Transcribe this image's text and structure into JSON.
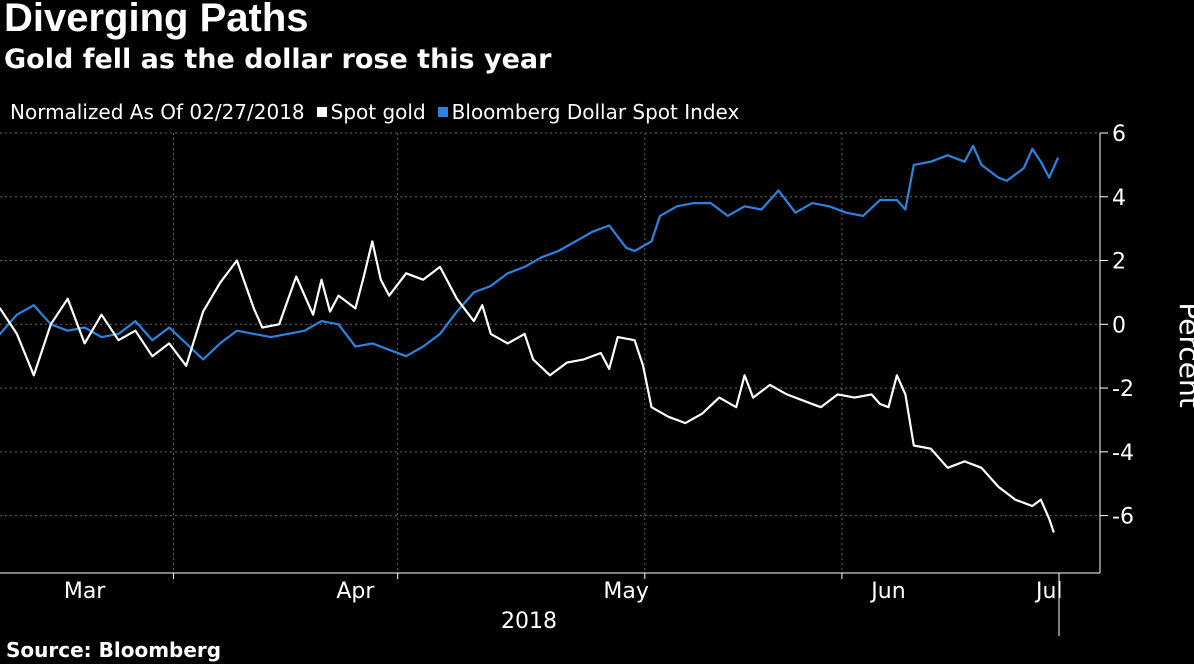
{
  "header": {
    "title": "Diverging Paths",
    "subtitle": "Gold fell as the dollar rose this year"
  },
  "legend": {
    "note": "Normalized As Of 02/27/2018",
    "items": [
      {
        "label": "Spot gold",
        "color": "#ffffff"
      },
      {
        "label": "Bloomberg Dollar Spot Index",
        "color": "#2d84e0"
      }
    ]
  },
  "footer": {
    "source": "Source: Bloomberg"
  },
  "chart_data": {
    "type": "line",
    "title": "Diverging Paths",
    "subtitle": "Gold fell as the dollar rose this year",
    "xlabel": "2018",
    "ylabel": "Percent",
    "ylim": [
      -7.8,
      6.0
    ],
    "yticks": [
      6,
      4,
      2,
      0,
      -2,
      -4,
      -6
    ],
    "ytick_labels": [
      "6",
      "4",
      "2",
      "0",
      "-2",
      "-4",
      "-6"
    ],
    "xlim": [
      0,
      130
    ],
    "xticks": [
      {
        "x": 10,
        "label": "Mar"
      },
      {
        "x": 42,
        "label": "Apr"
      },
      {
        "x": 74,
        "label": "May"
      },
      {
        "x": 105,
        "label": "Jun"
      },
      {
        "x": 124,
        "label": "Jul"
      }
    ],
    "year_label": "2018",
    "grid": true,
    "legend_position": "top-left",
    "series": [
      {
        "name": "Spot gold",
        "color": "#ffffff",
        "points": [
          [
            0,
            0.5
          ],
          [
            2,
            -0.3
          ],
          [
            4,
            -1.6
          ],
          [
            6,
            0.0
          ],
          [
            8,
            0.8
          ],
          [
            10,
            -0.6
          ],
          [
            12,
            0.3
          ],
          [
            14,
            -0.5
          ],
          [
            16,
            -0.2
          ],
          [
            18,
            -1.0
          ],
          [
            20,
            -0.6
          ],
          [
            22,
            -1.3
          ],
          [
            24,
            0.4
          ],
          [
            26,
            1.3
          ],
          [
            28,
            2.0
          ],
          [
            30,
            0.5
          ],
          [
            31,
            -0.1
          ],
          [
            33,
            0.0
          ],
          [
            35,
            1.5
          ],
          [
            37,
            0.3
          ],
          [
            38,
            1.4
          ],
          [
            39,
            0.4
          ],
          [
            40,
            0.9
          ],
          [
            42,
            0.5
          ],
          [
            43,
            1.5
          ],
          [
            44,
            2.6
          ],
          [
            45,
            1.4
          ],
          [
            46,
            0.9
          ],
          [
            48,
            1.6
          ],
          [
            50,
            1.4
          ],
          [
            52,
            1.8
          ],
          [
            54,
            0.8
          ],
          [
            56,
            0.1
          ],
          [
            57,
            0.6
          ],
          [
            58,
            -0.3
          ],
          [
            60,
            -0.6
          ],
          [
            62,
            -0.3
          ],
          [
            63,
            -1.1
          ],
          [
            65,
            -1.6
          ],
          [
            67,
            -1.2
          ],
          [
            69,
            -1.1
          ],
          [
            71,
            -0.9
          ],
          [
            72,
            -1.4
          ],
          [
            73,
            -0.4
          ],
          [
            75,
            -0.5
          ],
          [
            76,
            -1.3
          ],
          [
            77,
            -2.6
          ],
          [
            79,
            -2.9
          ],
          [
            81,
            -3.1
          ],
          [
            83,
            -2.8
          ],
          [
            85,
            -2.3
          ],
          [
            87,
            -2.6
          ],
          [
            88,
            -1.6
          ],
          [
            89,
            -2.3
          ],
          [
            91,
            -1.9
          ],
          [
            93,
            -2.2
          ],
          [
            95,
            -2.4
          ],
          [
            97,
            -2.6
          ],
          [
            99,
            -2.2
          ],
          [
            101,
            -2.3
          ],
          [
            103,
            -2.2
          ],
          [
            104,
            -2.5
          ],
          [
            105,
            -2.6
          ],
          [
            106,
            -1.6
          ],
          [
            107,
            -2.2
          ],
          [
            108,
            -3.8
          ],
          [
            110,
            -3.9
          ],
          [
            112,
            -4.5
          ],
          [
            114,
            -4.3
          ],
          [
            116,
            -4.5
          ],
          [
            118,
            -5.1
          ],
          [
            120,
            -5.5
          ],
          [
            122,
            -5.7
          ],
          [
            123,
            -5.5
          ],
          [
            124,
            -6.1
          ],
          [
            124.5,
            -6.5
          ]
        ]
      },
      {
        "name": "Bloomberg Dollar Spot Index",
        "color": "#2d84e0",
        "points": [
          [
            0,
            -0.3
          ],
          [
            2,
            0.3
          ],
          [
            4,
            0.6
          ],
          [
            6,
            0.0
          ],
          [
            8,
            -0.2
          ],
          [
            10,
            -0.1
          ],
          [
            12,
            -0.4
          ],
          [
            14,
            -0.3
          ],
          [
            16,
            0.1
          ],
          [
            18,
            -0.5
          ],
          [
            20,
            -0.1
          ],
          [
            22,
            -0.6
          ],
          [
            24,
            -1.1
          ],
          [
            26,
            -0.6
          ],
          [
            28,
            -0.2
          ],
          [
            30,
            -0.3
          ],
          [
            32,
            -0.4
          ],
          [
            34,
            -0.3
          ],
          [
            36,
            -0.2
          ],
          [
            38,
            0.1
          ],
          [
            40,
            0.0
          ],
          [
            42,
            -0.7
          ],
          [
            44,
            -0.6
          ],
          [
            46,
            -0.8
          ],
          [
            48,
            -1.0
          ],
          [
            50,
            -0.7
          ],
          [
            52,
            -0.3
          ],
          [
            54,
            0.4
          ],
          [
            56,
            1.0
          ],
          [
            58,
            1.2
          ],
          [
            60,
            1.6
          ],
          [
            62,
            1.8
          ],
          [
            64,
            2.1
          ],
          [
            66,
            2.3
          ],
          [
            68,
            2.6
          ],
          [
            70,
            2.9
          ],
          [
            72,
            3.1
          ],
          [
            74,
            2.4
          ],
          [
            75,
            2.3
          ],
          [
            77,
            2.6
          ],
          [
            78,
            3.4
          ],
          [
            80,
            3.7
          ],
          [
            82,
            3.8
          ],
          [
            84,
            3.8
          ],
          [
            86,
            3.4
          ],
          [
            88,
            3.7
          ],
          [
            90,
            3.6
          ],
          [
            92,
            4.2
          ],
          [
            94,
            3.5
          ],
          [
            96,
            3.8
          ],
          [
            98,
            3.7
          ],
          [
            100,
            3.5
          ],
          [
            102,
            3.4
          ],
          [
            104,
            3.9
          ],
          [
            106,
            3.9
          ],
          [
            107,
            3.6
          ],
          [
            108,
            5.0
          ],
          [
            110,
            5.1
          ],
          [
            112,
            5.3
          ],
          [
            114,
            5.1
          ],
          [
            115,
            5.6
          ],
          [
            116,
            5.0
          ],
          [
            118,
            4.6
          ],
          [
            119,
            4.5
          ],
          [
            120,
            4.7
          ],
          [
            121,
            4.9
          ],
          [
            122,
            5.5
          ],
          [
            123,
            5.1
          ],
          [
            124,
            4.6
          ],
          [
            125,
            5.2
          ]
        ]
      }
    ]
  }
}
